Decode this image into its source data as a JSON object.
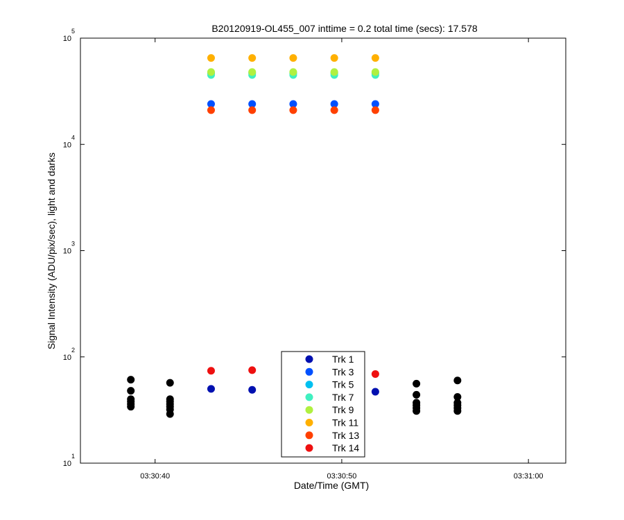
{
  "chart_data": {
    "type": "scatter",
    "title": "B20120919-OL455_007 inttime = 0.2 total time (secs): 17.578",
    "xlabel": "Date/Time (GMT)",
    "ylabel": "Signal Intensity (ADU/pix/sec), light and darks",
    "yscale": "log",
    "ylim": [
      10,
      100000
    ],
    "xlim": [
      "03:30:36",
      "03:31:02"
    ],
    "x_ticks": [
      "03:30:40",
      "03:30:50",
      "03:31:00"
    ],
    "y_ticks": [
      {
        "value": 10,
        "base": "10",
        "exp": "1"
      },
      {
        "value": 100,
        "base": "10",
        "exp": "2"
      },
      {
        "value": 1000,
        "base": "10",
        "exp": "3"
      },
      {
        "value": 10000,
        "base": "10",
        "exp": "4"
      },
      {
        "value": 100000,
        "base": "10",
        "exp": "5"
      }
    ],
    "grid": false,
    "legend_position": "bottom-center",
    "series": [
      {
        "name": "Trk 1",
        "color": "#0010b0",
        "points": [
          [
            "03:30:43.0",
            50
          ],
          [
            "03:30:45.2",
            49
          ],
          [
            "03:30:51.8",
            47
          ]
        ]
      },
      {
        "name": "Trk 3",
        "color": "#0050ff",
        "points": [
          [
            "03:30:43.0",
            24000
          ],
          [
            "03:30:45.2",
            24000
          ],
          [
            "03:30:47.4",
            24000
          ],
          [
            "03:30:49.6",
            24000
          ],
          [
            "03:30:51.8",
            24000
          ]
        ]
      },
      {
        "name": "Trk 5",
        "color": "#00c0f0",
        "points": [
          [
            "03:30:43.0",
            47000
          ],
          [
            "03:30:45.2",
            47000
          ],
          [
            "03:30:47.4",
            47000
          ],
          [
            "03:30:49.6",
            47000
          ],
          [
            "03:30:51.8",
            47000
          ]
        ]
      },
      {
        "name": "Trk 7",
        "color": "#40f0c0",
        "points": [
          [
            "03:30:43.0",
            45000
          ],
          [
            "03:30:45.2",
            45000
          ],
          [
            "03:30:47.4",
            45000
          ],
          [
            "03:30:49.6",
            45000
          ],
          [
            "03:30:51.8",
            45000
          ]
        ]
      },
      {
        "name": "Trk 9",
        "color": "#b0f040",
        "points": [
          [
            "03:30:43.0",
            48000
          ],
          [
            "03:30:45.2",
            48000
          ],
          [
            "03:30:47.4",
            48000
          ],
          [
            "03:30:49.6",
            48000
          ],
          [
            "03:30:51.8",
            48000
          ]
        ]
      },
      {
        "name": "Trk 11",
        "color": "#ffb000",
        "points": [
          [
            "03:30:43.0",
            65000
          ],
          [
            "03:30:45.2",
            65000
          ],
          [
            "03:30:47.4",
            65000
          ],
          [
            "03:30:49.6",
            65000
          ],
          [
            "03:30:51.8",
            65000
          ]
        ]
      },
      {
        "name": "Trk 13",
        "color": "#ff4000",
        "points": [
          [
            "03:30:43.0",
            21000
          ],
          [
            "03:30:45.2",
            21000
          ],
          [
            "03:30:47.4",
            21000
          ],
          [
            "03:30:49.6",
            21000
          ],
          [
            "03:30:51.8",
            21000
          ]
        ]
      },
      {
        "name": "Trk 14",
        "color": "#ee1010",
        "points": [
          [
            "03:30:43.0",
            74
          ],
          [
            "03:30:45.2",
            75
          ],
          [
            "03:30:51.8",
            69
          ]
        ]
      },
      {
        "name": "",
        "color": "#000000",
        "points": [
          [
            "03:30:38.7",
            61
          ],
          [
            "03:30:38.7",
            48
          ],
          [
            "03:30:38.7",
            40
          ],
          [
            "03:30:38.7",
            38
          ],
          [
            "03:30:38.7",
            36
          ],
          [
            "03:30:38.7",
            34
          ],
          [
            "03:30:40.8",
            57
          ],
          [
            "03:30:40.8",
            40
          ],
          [
            "03:30:40.8",
            38
          ],
          [
            "03:30:40.8",
            36
          ],
          [
            "03:30:40.8",
            34
          ],
          [
            "03:30:40.8",
            32
          ],
          [
            "03:30:40.8",
            29
          ],
          [
            "03:30:54.0",
            56
          ],
          [
            "03:30:54.0",
            44
          ],
          [
            "03:30:54.0",
            37
          ],
          [
            "03:30:54.0",
            35
          ],
          [
            "03:30:54.0",
            33
          ],
          [
            "03:30:54.0",
            31
          ],
          [
            "03:30:56.2",
            60
          ],
          [
            "03:30:56.2",
            42
          ],
          [
            "03:30:56.2",
            37
          ],
          [
            "03:30:56.2",
            35
          ],
          [
            "03:30:56.2",
            33
          ],
          [
            "03:30:56.2",
            31
          ]
        ]
      }
    ]
  }
}
